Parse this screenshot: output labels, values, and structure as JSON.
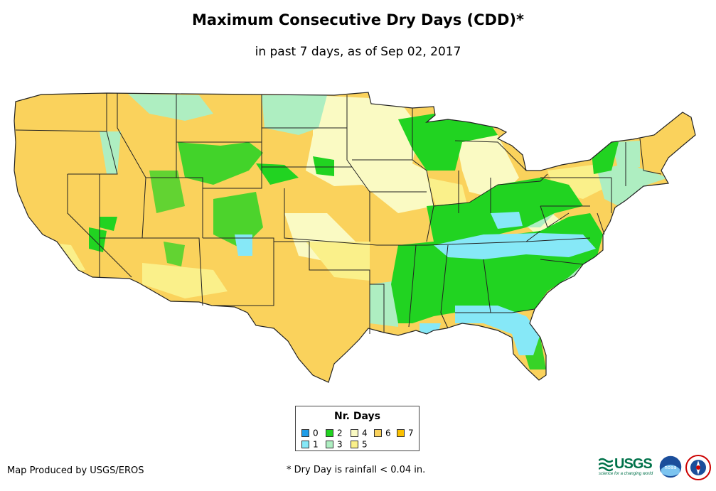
{
  "title": "Maximum Consecutive Dry Days (CDD)*",
  "subtitle": "in past 7 days, as of Sep 02, 2017",
  "legend": {
    "title": "Nr. Days",
    "items": [
      {
        "label": "0",
        "color": "#1f9de8"
      },
      {
        "label": "1",
        "color": "#86e8f7"
      },
      {
        "label": "2",
        "color": "#21d321"
      },
      {
        "label": "3",
        "color": "#aeeec1"
      },
      {
        "label": "4",
        "color": "#fafac3"
      },
      {
        "label": "5",
        "color": "#faf08a"
      },
      {
        "label": "6",
        "color": "#fad25c"
      },
      {
        "label": "7",
        "color": "#fac000"
      }
    ]
  },
  "credit": "Map Produced by USGS/EROS",
  "footnote": "* Dry Day is rainfall < 0.04 in.",
  "logos": {
    "usgs": "USGS",
    "usgs_tagline": "science for a changing world",
    "noaa": "noaa",
    "nws": "National Weather Service"
  },
  "colors": {
    "state_border": "#222222",
    "base_fill": "#fad25c"
  }
}
